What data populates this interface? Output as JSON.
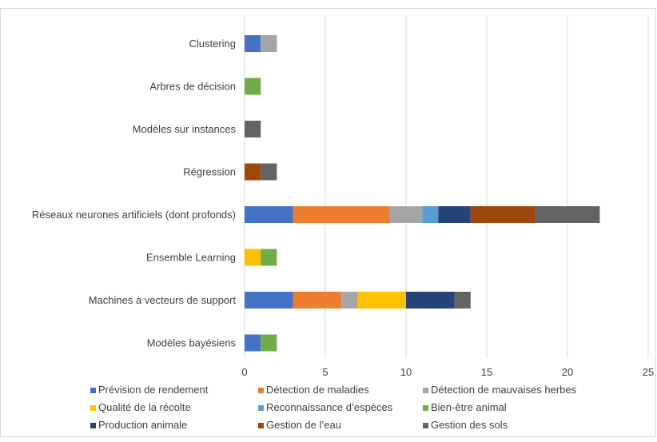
{
  "chart_data": {
    "type": "bar",
    "orientation": "horizontal",
    "stacked": true,
    "categories": [
      "Clustering",
      "Arbres de décision",
      "Modèles sur instances",
      "Régression",
      "Réseaux neurones artificiels (dont profonds)",
      "Ensemble Learning",
      "Machines à vecteurs de support",
      "Modèles bayésiens"
    ],
    "series": [
      {
        "name": "Prévision de rendement",
        "color": "#4472C4",
        "values": [
          1,
          0,
          0,
          0,
          3,
          0,
          3,
          1
        ]
      },
      {
        "name": "Détection de maladies",
        "color": "#ED7D31",
        "values": [
          0,
          0,
          0,
          0,
          6,
          0,
          3,
          0
        ]
      },
      {
        "name": "Détection de mauvaises herbes",
        "color": "#A5A5A5",
        "values": [
          1,
          0,
          0,
          0,
          2,
          0,
          1,
          0
        ]
      },
      {
        "name": "Qualité de la récolte",
        "color": "#FFC000",
        "values": [
          0,
          0,
          0,
          0,
          0,
          1,
          3,
          0
        ]
      },
      {
        "name": "Reconnaissance d’espèces",
        "color": "#5B9BD5",
        "values": [
          0,
          0,
          0,
          0,
          1,
          0,
          0,
          0
        ]
      },
      {
        "name": "Bien-être animal",
        "color": "#70AD47",
        "values": [
          0,
          1,
          0,
          0,
          0,
          1,
          0,
          1
        ]
      },
      {
        "name": "Production animale",
        "color": "#264478",
        "values": [
          0,
          0,
          0,
          0,
          2,
          0,
          3,
          0
        ]
      },
      {
        "name": "Gestion de l’eau",
        "color": "#9E480E",
        "values": [
          0,
          0,
          0,
          1,
          4,
          0,
          0,
          0
        ]
      },
      {
        "name": "Gestion des sols",
        "color": "#636363",
        "values": [
          0,
          0,
          1,
          1,
          4,
          0,
          1,
          0
        ]
      }
    ],
    "xlim": [
      0,
      25
    ],
    "xticks": [
      0,
      5,
      10,
      15,
      20,
      25
    ],
    "grid": "vertical",
    "legend": "bottom",
    "title": "",
    "xlabel": "",
    "ylabel": ""
  }
}
